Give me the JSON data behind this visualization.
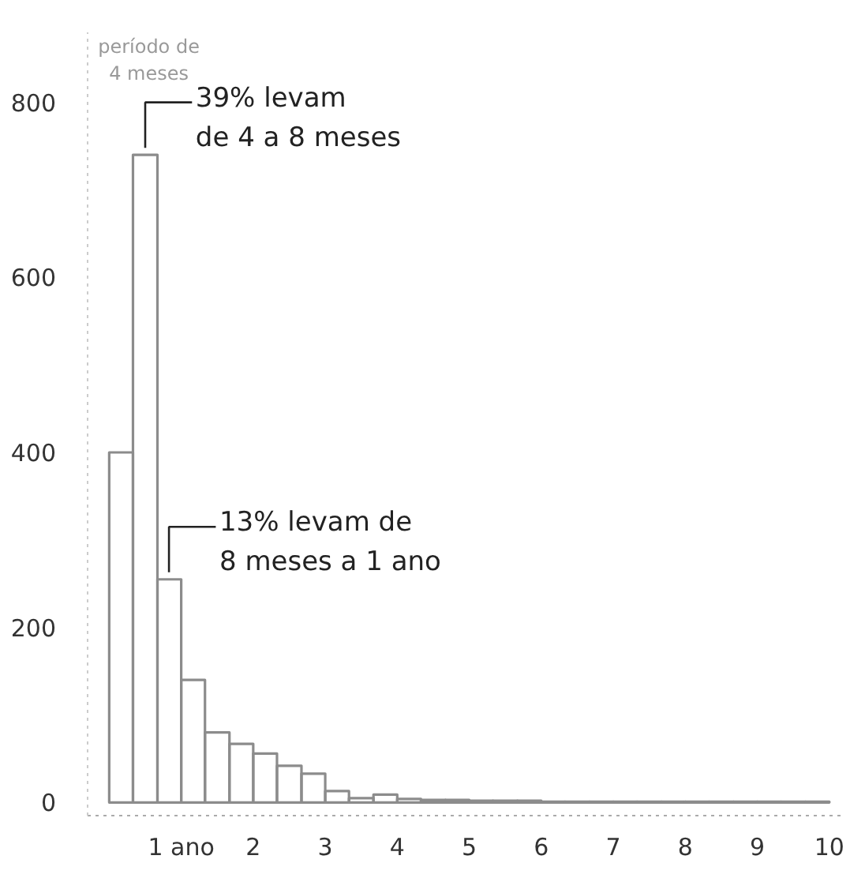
{
  "chart_data": {
    "type": "histogram",
    "bins": [
      0,
      0.33,
      0.67,
      1,
      1.33,
      1.67,
      2,
      2.33,
      2.67,
      3,
      3.33,
      3.67,
      4,
      4.33,
      4.67,
      5,
      5.33,
      5.67,
      6,
      6.33,
      6.67,
      7,
      7.33,
      7.67,
      8,
      8.33,
      8.67,
      9,
      9.33,
      9.67,
      10
    ],
    "values": [
      400,
      740,
      255,
      140,
      80,
      67,
      56,
      42,
      33,
      13,
      5,
      9,
      4,
      3,
      3,
      2,
      2,
      2,
      1,
      1,
      1,
      1,
      1,
      1,
      1,
      1,
      1,
      1,
      1,
      1
    ],
    "color": "#8c8c8c",
    "xlim": [
      -0.3,
      10.2
    ],
    "ylim": [
      -15,
      880
    ],
    "xticks": [
      {
        "value": 1,
        "label": "1 ano"
      },
      2,
      3,
      4,
      5,
      6,
      7,
      8,
      9,
      10
    ],
    "yticks": [
      0,
      200,
      400,
      600,
      800
    ],
    "grid": false,
    "annotations": [
      "período de\n4 meses",
      {
        "text": "39% levam\nde 4 a 8 meses",
        "x": 0.5,
        "y": 740
      },
      {
        "text": "13% levam de\n8 meses a 1 ano",
        "x": 0.83,
        "y": 255
      }
    ]
  }
}
